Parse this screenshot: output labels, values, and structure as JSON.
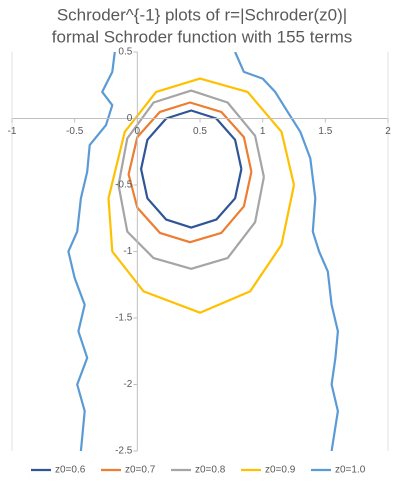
{
  "chart_data": {
    "type": "line",
    "title": "Schroder^{-1} plots of r=|Schroder(z0)|",
    "subtitle": "formal Schroder function with 155 terms",
    "xlim": [
      -1,
      2
    ],
    "xticks": [
      -1,
      -0.5,
      0,
      0.5,
      1,
      1.5,
      2
    ],
    "ylim": [
      -2.5,
      0.5
    ],
    "yticks": [
      0.5,
      0,
      -0.5,
      -1,
      -1.5,
      -2,
      -2.5
    ],
    "legend": "bottom",
    "series": [
      {
        "name": "z0=0.6",
        "color": "#2f5597",
        "x": [
          0.83,
          0.78,
          0.63,
          0.43,
          0.23,
          0.08,
          0.03,
          0.08,
          0.23,
          0.43,
          0.63,
          0.78,
          0.83
        ],
        "values": [
          -0.38,
          -0.16,
          0.0,
          0.06,
          0.0,
          -0.16,
          -0.38,
          -0.6,
          -0.76,
          -0.82,
          -0.76,
          -0.6,
          -0.38
        ]
      },
      {
        "name": "z0=0.7",
        "color": "#ed7d31",
        "x": [
          0.91,
          0.85,
          0.67,
          0.42,
          0.18,
          0.0,
          -0.07,
          0.0,
          0.18,
          0.42,
          0.67,
          0.85,
          0.91
        ],
        "values": [
          -0.4,
          -0.14,
          0.05,
          0.12,
          0.05,
          -0.14,
          -0.42,
          -0.67,
          -0.86,
          -0.93,
          -0.86,
          -0.66,
          -0.4
        ]
      },
      {
        "name": "z0=0.8",
        "color": "#a5a5a5",
        "x": [
          1.01,
          0.94,
          0.72,
          0.43,
          0.13,
          -0.08,
          -0.15,
          -0.08,
          0.13,
          0.43,
          0.72,
          0.94,
          1.01
        ],
        "values": [
          -0.44,
          -0.13,
          0.12,
          0.21,
          0.12,
          -0.15,
          -0.5,
          -0.85,
          -1.05,
          -1.13,
          -1.05,
          -0.78,
          -0.44
        ]
      },
      {
        "name": "z0=0.9",
        "color": "#ffc000",
        "x": [
          1.25,
          1.15,
          0.88,
          0.5,
          0.15,
          -0.1,
          -0.23,
          -0.2,
          0.05,
          0.5,
          0.9,
          1.15,
          1.25
        ],
        "values": [
          -0.5,
          -0.1,
          0.2,
          0.3,
          0.2,
          -0.1,
          -0.6,
          -1.0,
          -1.3,
          -1.46,
          -1.3,
          -0.95,
          -0.5
        ]
      },
      {
        "name": "z0=1.0",
        "color": "#5b9bd5",
        "x": [
          -0.45,
          -0.42,
          -0.48,
          -0.4,
          -0.47,
          -0.42,
          -0.5,
          -0.55,
          -0.48,
          -0.45,
          -0.4,
          -0.38,
          -0.25,
          -0.2,
          -0.28,
          -0.2,
          -0.18,
          null,
          0.78,
          0.85,
          1.0,
          1.1,
          1.2,
          1.3,
          1.38,
          1.42,
          1.4,
          1.45,
          1.52,
          1.55,
          1.6,
          1.58,
          1.55,
          1.6,
          1.55
        ],
        "values": [
          -2.5,
          -2.2,
          -2.0,
          -1.8,
          -1.6,
          -1.4,
          -1.2,
          -1.0,
          -0.85,
          -0.6,
          -0.4,
          -0.2,
          -0.05,
          0.1,
          0.2,
          0.35,
          0.5,
          null,
          0.5,
          0.35,
          0.3,
          0.2,
          0.05,
          -0.1,
          -0.3,
          -0.6,
          -0.85,
          -1.0,
          -1.15,
          -1.4,
          -1.6,
          -1.8,
          -2.0,
          -2.2,
          -2.5
        ]
      }
    ]
  }
}
